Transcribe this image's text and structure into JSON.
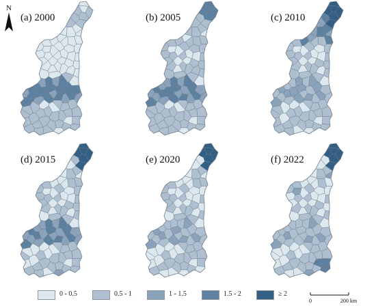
{
  "north_arrow": {
    "letter": "N"
  },
  "panels": [
    {
      "label": "(a) 2000"
    },
    {
      "label": "(b) 2005"
    },
    {
      "label": "(c) 2010"
    },
    {
      "label": "(d) 2015"
    },
    {
      "label": "(e) 2020"
    },
    {
      "label": "(f) 2022"
    }
  ],
  "legend": {
    "items": [
      {
        "label": "0 - 0.5",
        "color": "#dde7ee"
      },
      {
        "label": "0.5 - 1",
        "color": "#aebfcf"
      },
      {
        "label": "1 - 1.5",
        "color": "#8aa2ba"
      },
      {
        "label": "1.5 - 2",
        "color": "#5f81a0"
      },
      {
        "label": "≥ 2",
        "color": "#335f84"
      }
    ]
  },
  "scale_bar": {
    "zero": "0",
    "distance": "200 km"
  },
  "colors": {
    "outline": "#6d7c8c",
    "background": "#ffffff"
  }
}
